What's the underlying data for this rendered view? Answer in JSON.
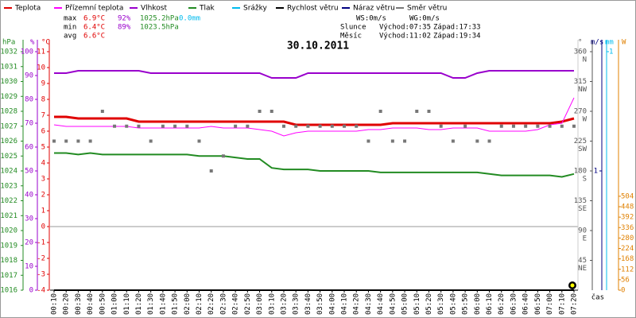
{
  "chart_data": {
    "type": "line",
    "title": "30.10.2011",
    "x_label": "čas",
    "categories": [
      "00:10",
      "00:20",
      "00:30",
      "00:40",
      "00:50",
      "01:00",
      "01:10",
      "01:20",
      "01:30",
      "01:40",
      "01:50",
      "02:00",
      "02:10",
      "02:20",
      "02:30",
      "02:40",
      "02:50",
      "03:00",
      "03:10",
      "03:20",
      "03:30",
      "03:40",
      "03:50",
      "04:00",
      "04:10",
      "04:20",
      "04:30",
      "04:40",
      "04:50",
      "05:00",
      "05:10",
      "05:20",
      "05:30",
      "05:40",
      "05:50",
      "06:00",
      "06:10",
      "06:20",
      "06:30",
      "06:40",
      "06:50",
      "07:00",
      "07:10",
      "07:20"
    ],
    "series": [
      {
        "name": "Teplota",
        "color": "#e00000",
        "axis": "temperature",
        "width": 3,
        "values": [
          6.9,
          6.9,
          6.8,
          6.8,
          6.8,
          6.8,
          6.8,
          6.6,
          6.6,
          6.6,
          6.6,
          6.6,
          6.6,
          6.6,
          6.6,
          6.6,
          6.6,
          6.6,
          6.6,
          6.6,
          6.4,
          6.4,
          6.4,
          6.4,
          6.4,
          6.4,
          6.4,
          6.4,
          6.5,
          6.5,
          6.5,
          6.5,
          6.5,
          6.5,
          6.5,
          6.5,
          6.5,
          6.5,
          6.5,
          6.5,
          6.5,
          6.5,
          6.6,
          6.8
        ]
      },
      {
        "name": "Přízemní teplota",
        "color": "#ff00ff",
        "axis": "temperature",
        "width": 1,
        "values": [
          6.4,
          6.3,
          6.3,
          6.3,
          6.3,
          6.3,
          6.3,
          6.2,
          6.2,
          6.2,
          6.2,
          6.2,
          6.2,
          6.3,
          6.2,
          6.2,
          6.2,
          6.1,
          6.0,
          5.7,
          5.9,
          6.0,
          6.0,
          6.0,
          6.0,
          6.0,
          6.1,
          6.1,
          6.2,
          6.2,
          6.2,
          6.1,
          6.1,
          6.2,
          6.2,
          6.2,
          6.0,
          6.0,
          6.0,
          6.0,
          6.1,
          6.4,
          6.5,
          8.1
        ]
      },
      {
        "name": "Vlhkost",
        "color": "#9900cc",
        "axis": "humidity",
        "width": 2,
        "values": [
          91,
          91,
          92,
          92,
          92,
          92,
          92,
          92,
          91,
          91,
          91,
          91,
          91,
          91,
          91,
          91,
          91,
          91,
          89,
          89,
          89,
          91,
          91,
          91,
          91,
          91,
          91,
          91,
          91,
          91,
          91,
          91,
          91,
          89,
          89,
          91,
          92,
          92,
          92,
          92,
          92,
          92,
          92,
          92
        ]
      },
      {
        "name": "Tlak",
        "color": "#228b22",
        "axis": "pressure",
        "width": 2,
        "values": [
          1025.2,
          1025.2,
          1025.1,
          1025.2,
          1025.1,
          1025.1,
          1025.1,
          1025.1,
          1025.1,
          1025.1,
          1025.1,
          1025.1,
          1025.0,
          1025.0,
          1025.0,
          1024.9,
          1024.8,
          1024.8,
          1024.2,
          1024.1,
          1024.1,
          1024.1,
          1024.0,
          1024.0,
          1024.0,
          1024.0,
          1024.0,
          1023.9,
          1023.9,
          1023.9,
          1023.9,
          1023.9,
          1023.9,
          1023.9,
          1023.9,
          1023.9,
          1023.8,
          1023.7,
          1023.7,
          1023.7,
          1023.7,
          1023.7,
          1023.6,
          1023.8
        ]
      },
      {
        "name": "Srážky",
        "color": "#00bbee",
        "axis": "rain"
      },
      {
        "name": "Rychlost větru",
        "color": "#000000",
        "axis": "wind",
        "width": 2,
        "values": [
          0,
          0,
          0,
          0,
          0,
          0,
          0,
          0,
          0,
          0,
          0,
          0,
          0,
          0,
          0,
          0,
          0,
          0,
          0,
          0,
          0,
          0,
          0,
          0,
          0,
          0,
          0,
          0,
          0,
          0,
          0,
          0,
          0,
          0,
          0,
          0,
          0,
          0,
          0,
          0,
          0,
          0,
          0,
          0
        ]
      },
      {
        "name": "Náraz větru",
        "color": "#000080",
        "axis": "wind"
      },
      {
        "name": "Směr větru",
        "color": "#777777",
        "axis": "direction",
        "style": "points",
        "values": [
          225,
          225,
          225,
          225,
          270,
          247.5,
          247.5,
          247.5,
          225,
          247.5,
          247.5,
          247.5,
          225,
          180,
          202.5,
          247.5,
          247.5,
          270,
          270,
          247.5,
          247.5,
          247.5,
          247.5,
          247.5,
          247.5,
          247.5,
          225,
          270,
          225,
          225,
          270,
          270,
          247.5,
          225,
          247.5,
          225,
          225,
          247.5,
          247.5,
          247.5,
          247.5,
          247.5,
          247.5,
          247.5
        ]
      }
    ],
    "axes": {
      "pressure": {
        "label": "hPa",
        "color": "#228b22",
        "lim": [
          1016,
          1032
        ],
        "ticks": [
          1016,
          1017,
          1018,
          1019,
          1020,
          1021,
          1022,
          1023,
          1024,
          1025,
          1026,
          1027,
          1028,
          1029,
          1030,
          1031,
          1032
        ]
      },
      "humidity": {
        "label": "%",
        "color": "#9900cc",
        "lim": [
          0,
          100
        ],
        "ticks": [
          0,
          10,
          20,
          30,
          40,
          50,
          60,
          70,
          80,
          90,
          100
        ]
      },
      "temperature": {
        "label": "°C",
        "color": "#e00000",
        "lim": [
          -4,
          11
        ],
        "ticks": [
          -4,
          -3,
          -2,
          -1,
          0,
          1,
          2,
          3,
          4,
          5,
          6,
          7,
          8,
          9,
          10,
          11
        ],
        "zero_line": true
      },
      "direction": {
        "label": "°",
        "color": "#555555",
        "lim": [
          0,
          360
        ],
        "ticks": [
          45,
          90,
          135,
          180,
          225,
          270,
          315,
          360
        ],
        "tick_names": [
          "NE",
          "E",
          "SE",
          "S",
          "SW",
          "W",
          "NW",
          "N"
        ]
      },
      "wind": {
        "label": "m/s",
        "color": "#000080",
        "lim": [
          0,
          2
        ],
        "ticks": [
          1
        ]
      },
      "rain": {
        "label": "mm",
        "color": "#00bbee",
        "lim": [
          0,
          1
        ],
        "ticks": [
          1
        ]
      },
      "radiation": {
        "label": "W",
        "color": "#e08000",
        "lim": [
          0,
          1280
        ],
        "ticks": [
          0,
          56,
          112,
          168,
          224,
          280,
          336,
          392,
          448,
          504
        ]
      }
    },
    "stats": {
      "colors": [
        "#e00000",
        "#9900cc",
        "#228b22",
        "#00bbee"
      ],
      "rows": [
        {
          "label": "max",
          "cells": [
            "6.9°C",
            "92%",
            "1025.2hPa",
            "0.0mm"
          ]
        },
        {
          "label": "min",
          "cells": [
            "6.4°C",
            "89%",
            "1023.5hPa"
          ]
        },
        {
          "label": "avg",
          "cells": [
            "6.6°C"
          ]
        }
      ]
    },
    "info": [
      [
        "WS:0m/s",
        "WG:0m/s"
      ],
      [
        "Slunce",
        "Východ:07:35",
        "Západ:17:33"
      ],
      [
        "Měsíc",
        "Východ:11:02",
        "Západ:19:34"
      ]
    ]
  }
}
